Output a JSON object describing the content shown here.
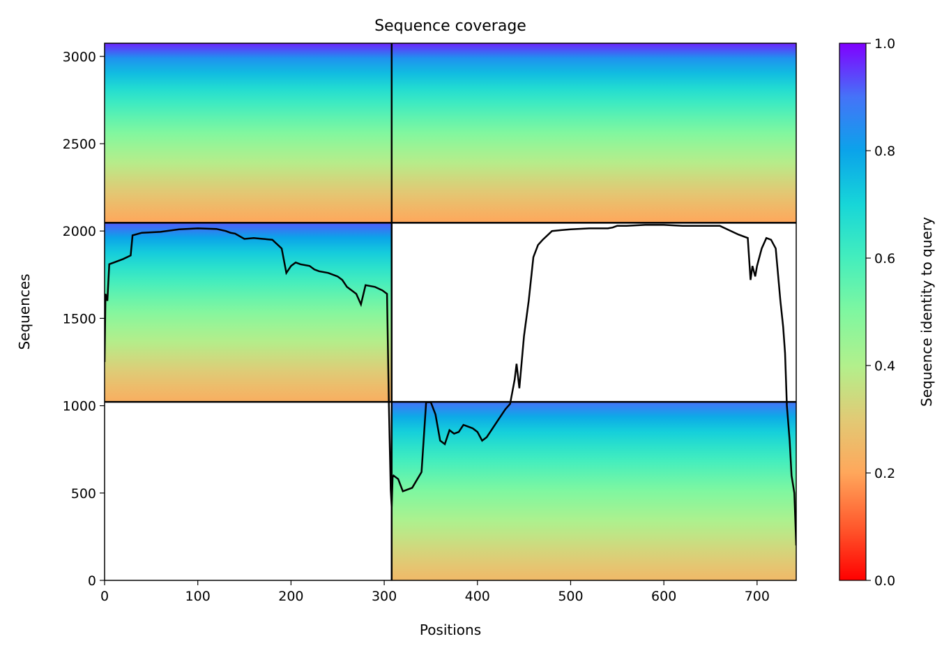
{
  "chart_data": {
    "type": "heatmap",
    "title": "Sequence coverage",
    "xlabel": "Positions",
    "ylabel": "Sequences",
    "xlim": [
      0,
      742
    ],
    "ylim": [
      0,
      3075
    ],
    "xticks": [
      0,
      100,
      200,
      300,
      400,
      500,
      600,
      700
    ],
    "yticks": [
      0,
      500,
      1000,
      1500,
      2000,
      2500,
      3000
    ],
    "colorbar": {
      "label": "Sequence identity to query",
      "range": [
        0,
        1
      ],
      "ticks": [
        "0.0",
        "0.2",
        "0.4",
        "0.6",
        "0.8",
        "1.0"
      ]
    },
    "blocks": [
      {
        "x": [
          0,
          308
        ],
        "y": [
          2047,
          3075
        ],
        "identity_top": 0.97,
        "identity_bottom": 0.2
      },
      {
        "x": [
          308,
          742
        ],
        "y": [
          2047,
          3075
        ],
        "identity_top": 0.97,
        "identity_bottom": 0.2
      },
      {
        "x": [
          0,
          308
        ],
        "y": [
          1022,
          2047
        ],
        "identity_top": 0.92,
        "identity_bottom": 0.22
      },
      {
        "x": [
          308,
          742
        ],
        "y": [
          0,
          1022
        ],
        "identity_top": 0.9,
        "identity_bottom": 0.25
      }
    ],
    "block_dividers": {
      "x": [
        308
      ],
      "y": [
        1022,
        2047
      ]
    },
    "coverage_line": {
      "x": [
        0,
        1,
        3,
        5,
        10,
        20,
        28,
        30,
        40,
        60,
        80,
        100,
        120,
        130,
        135,
        140,
        150,
        160,
        170,
        180,
        190,
        195,
        200,
        205,
        210,
        220,
        225,
        230,
        240,
        250,
        255,
        260,
        265,
        270,
        275,
        280,
        290,
        298,
        303,
        305,
        307,
        308,
        309,
        310,
        315,
        320,
        330,
        340,
        345,
        350,
        355,
        360,
        365,
        370,
        375,
        380,
        385,
        390,
        395,
        400,
        405,
        410,
        415,
        420,
        425,
        430,
        435,
        440,
        442,
        445,
        450,
        455,
        460,
        465,
        470,
        480,
        490,
        500,
        520,
        540,
        545,
        550,
        560,
        580,
        600,
        620,
        640,
        660,
        680,
        690,
        693,
        695,
        698,
        700,
        705,
        710,
        715,
        720,
        725,
        728,
        730,
        732,
        735,
        737,
        740,
        742
      ],
      "y": [
        1250,
        1640,
        1600,
        1810,
        1820,
        1840,
        1860,
        1975,
        1990,
        1995,
        2010,
        2015,
        2012,
        2000,
        1990,
        1985,
        1955,
        1960,
        1955,
        1950,
        1900,
        1760,
        1800,
        1820,
        1810,
        1800,
        1780,
        1770,
        1760,
        1740,
        1720,
        1680,
        1660,
        1640,
        1580,
        1690,
        1680,
        1660,
        1640,
        1000,
        520,
        420,
        590,
        600,
        580,
        510,
        530,
        620,
        1020,
        1020,
        950,
        800,
        780,
        860,
        840,
        850,
        890,
        880,
        870,
        850,
        800,
        820,
        860,
        900,
        940,
        980,
        1010,
        1150,
        1240,
        1100,
        1400,
        1600,
        1850,
        1920,
        1950,
        2000,
        2005,
        2010,
        2015,
        2015,
        2020,
        2030,
        2030,
        2035,
        2035,
        2030,
        2030,
        2030,
        1980,
        1960,
        1720,
        1800,
        1740,
        1800,
        1900,
        1960,
        1950,
        1900,
        1600,
        1450,
        1300,
        1000,
        800,
        600,
        500,
        200
      ]
    }
  }
}
